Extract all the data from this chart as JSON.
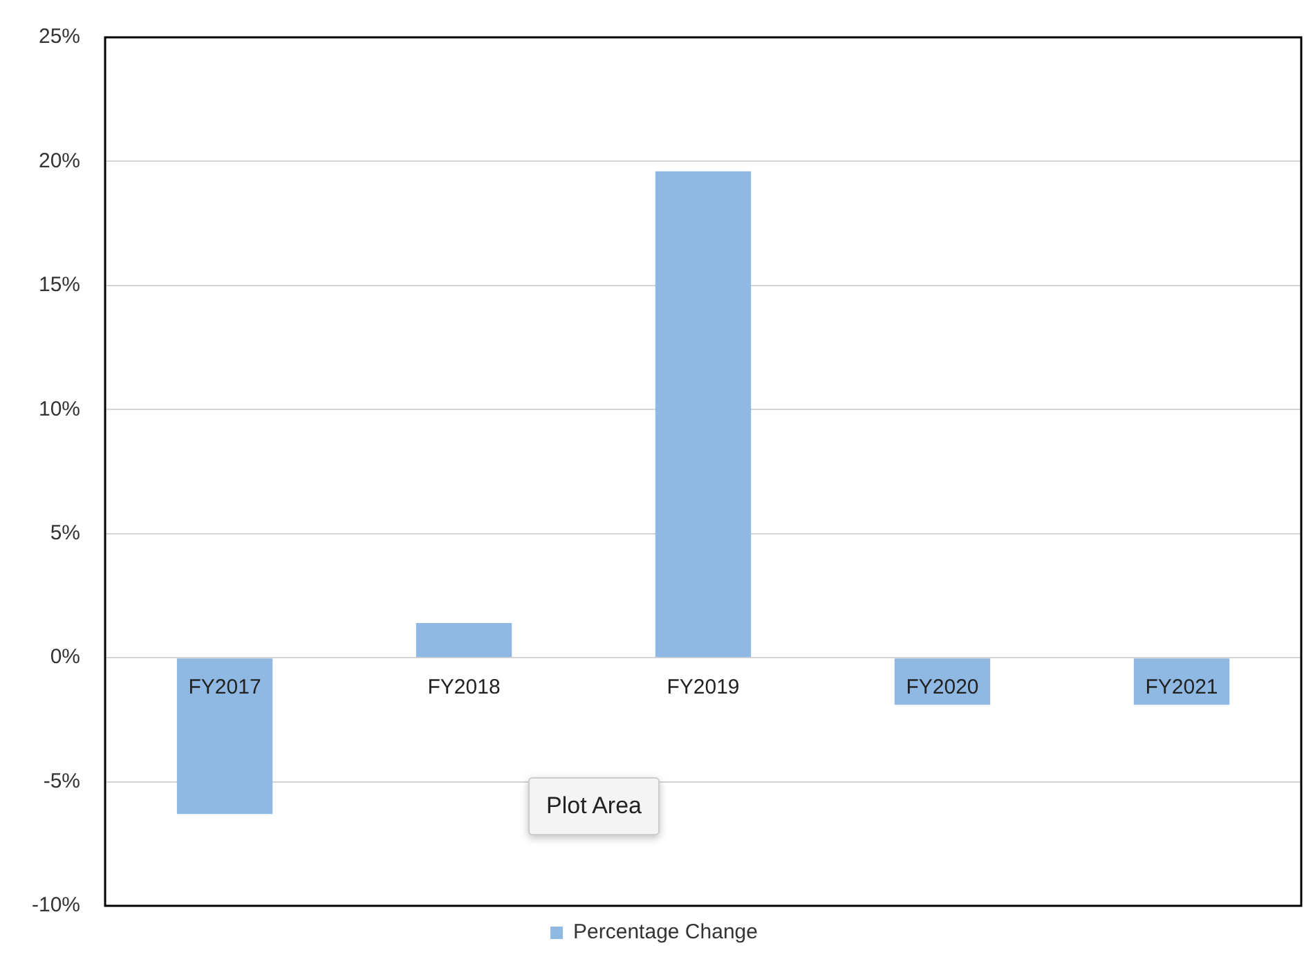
{
  "chart_data": {
    "type": "bar",
    "categories": [
      "FY2017",
      "FY2018",
      "FY2019",
      "FY2020",
      "FY2021"
    ],
    "series": [
      {
        "name": "Percentage Change",
        "color": "#8fb8e3",
        "values": [
          -6.3,
          1.4,
          19.6,
          -1.9,
          -1.9
        ]
      }
    ],
    "ylim": [
      -10,
      25
    ],
    "yticks": [
      {
        "value": -10,
        "label": "-10%"
      },
      {
        "value": -5,
        "label": "-5%"
      },
      {
        "value": 0,
        "label": "0%"
      },
      {
        "value": 5,
        "label": "5%"
      },
      {
        "value": 10,
        "label": "10%"
      },
      {
        "value": 15,
        "label": "15%"
      },
      {
        "value": 20,
        "label": "20%"
      },
      {
        "value": 25,
        "label": "25%"
      }
    ],
    "grid": "y",
    "legend": "bottom",
    "annotations": [
      "Plot Area"
    ]
  }
}
